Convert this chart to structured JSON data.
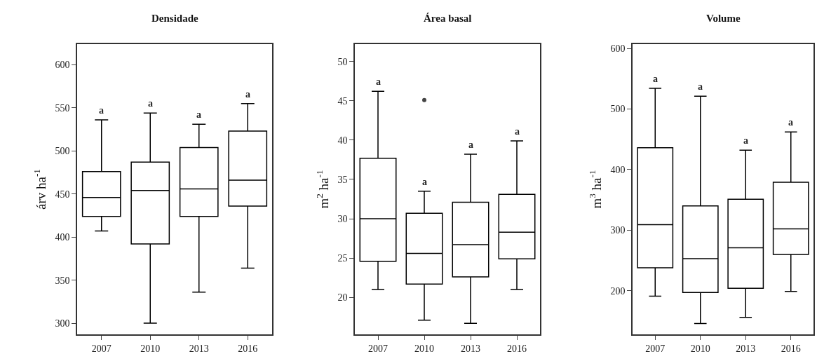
{
  "chart_data": [
    {
      "type": "box",
      "title": "Densidade",
      "ylabel": "árv ha$^{-1}$",
      "categories": [
        "2007",
        "2010",
        "2013",
        "2016"
      ],
      "boxes": [
        {
          "low": 407,
          "q1": 424,
          "median": 446,
          "q3": 476,
          "high": 536
        },
        {
          "low": 300,
          "q1": 392,
          "median": 454,
          "q3": 487,
          "high": 544
        },
        {
          "low": 336,
          "q1": 424,
          "median": 456,
          "q3": 504,
          "high": 531
        },
        {
          "low": 364,
          "q1": 436,
          "median": 466,
          "q3": 523,
          "high": 555
        }
      ],
      "ylim": [
        287,
        624
      ],
      "yticks": [
        300,
        350,
        400,
        450,
        500,
        550,
        600
      ],
      "annotations": [
        "a",
        "a",
        "a",
        "a"
      ]
    },
    {
      "type": "box",
      "title": "Área basal",
      "ylabel": "m$^{2}$ ha$^{-1}$",
      "categories": [
        "2007",
        "2010",
        "2013",
        "2016"
      ],
      "boxes": [
        {
          "low": 21.0,
          "q1": 24.6,
          "median": 30.0,
          "q3": 37.7,
          "high": 46.2
        },
        {
          "low": 17.1,
          "q1": 21.7,
          "median": 25.6,
          "q3": 30.7,
          "high": 33.5,
          "outliers": [
            45.1
          ]
        },
        {
          "low": 16.7,
          "q1": 22.6,
          "median": 26.7,
          "q3": 32.1,
          "high": 38.2
        },
        {
          "low": 21.0,
          "q1": 24.9,
          "median": 28.3,
          "q3": 33.1,
          "high": 39.9
        }
      ],
      "ylim": [
        15.3,
        52.2
      ],
      "yticks": [
        20,
        25,
        30,
        35,
        40,
        45,
        50
      ],
      "annotations": [
        "a",
        "a",
        "a",
        "a"
      ]
    },
    {
      "type": "box",
      "title": "Volume",
      "ylabel": "m$^{3}$ ha$^{-1}$",
      "categories": [
        "2007",
        "2010",
        "2013",
        "2016"
      ],
      "boxes": [
        {
          "low": 191,
          "q1": 238,
          "median": 309,
          "q3": 436,
          "high": 534
        },
        {
          "low": 146,
          "q1": 197,
          "median": 253,
          "q3": 340,
          "high": 521
        },
        {
          "low": 156,
          "q1": 204,
          "median": 271,
          "q3": 351,
          "high": 432
        },
        {
          "low": 199,
          "q1": 260,
          "median": 302,
          "q3": 379,
          "high": 462
        }
      ],
      "ylim": [
        128,
        607
      ],
      "yticks": [
        200,
        300,
        400,
        500,
        600
      ],
      "annotations": [
        "a",
        "a",
        "a",
        "a"
      ]
    }
  ]
}
